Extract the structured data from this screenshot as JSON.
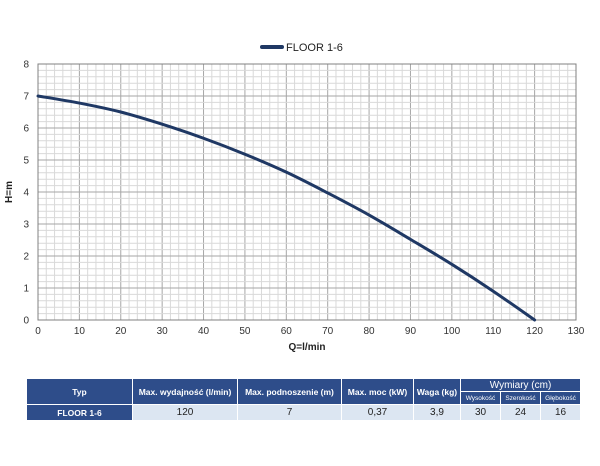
{
  "chart_data": {
    "type": "line",
    "legend": {
      "label": "FLOOR 1-6",
      "placement": "top-center"
    },
    "xlabel": "Q=l/min",
    "ylabel": "H=m",
    "xlim": [
      0,
      130
    ],
    "ylim": [
      0,
      8
    ],
    "xticks": [
      0,
      10,
      20,
      30,
      40,
      50,
      60,
      70,
      80,
      90,
      100,
      110,
      120,
      130
    ],
    "yticks": [
      0,
      1,
      2,
      3,
      4,
      5,
      6,
      7,
      8
    ],
    "grid": true,
    "series": [
      {
        "name": "FLOOR 1-6",
        "color": "#1f3864",
        "x": [
          0,
          10,
          20,
          30,
          40,
          50,
          60,
          70,
          80,
          90,
          100,
          110,
          120
        ],
        "y": [
          7.0,
          6.78,
          6.5,
          6.12,
          5.68,
          5.18,
          4.62,
          3.97,
          3.28,
          2.52,
          1.74,
          0.9,
          0.0
        ]
      }
    ]
  },
  "table": {
    "headers": {
      "type": "Typ",
      "flow": "Max. wydajność (l/min)",
      "head": "Max. podnoszenie (m)",
      "power": "Max. moc (kW)",
      "weight": "Waga (kg)",
      "dimensions": "Wymiary (cm)",
      "height": "Wysokość",
      "width": "Szerokość",
      "depth": "Głębokość"
    },
    "rows": [
      {
        "type": "FLOOR 1-6",
        "flow": "120",
        "head": "7",
        "power": "0,37",
        "weight": "3,9",
        "height": "30",
        "width": "24",
        "depth": "16"
      }
    ]
  },
  "colors": {
    "line": "#1f3864",
    "header_bg": "#2e4d8a",
    "cell_bg": "#dce6f2"
  }
}
